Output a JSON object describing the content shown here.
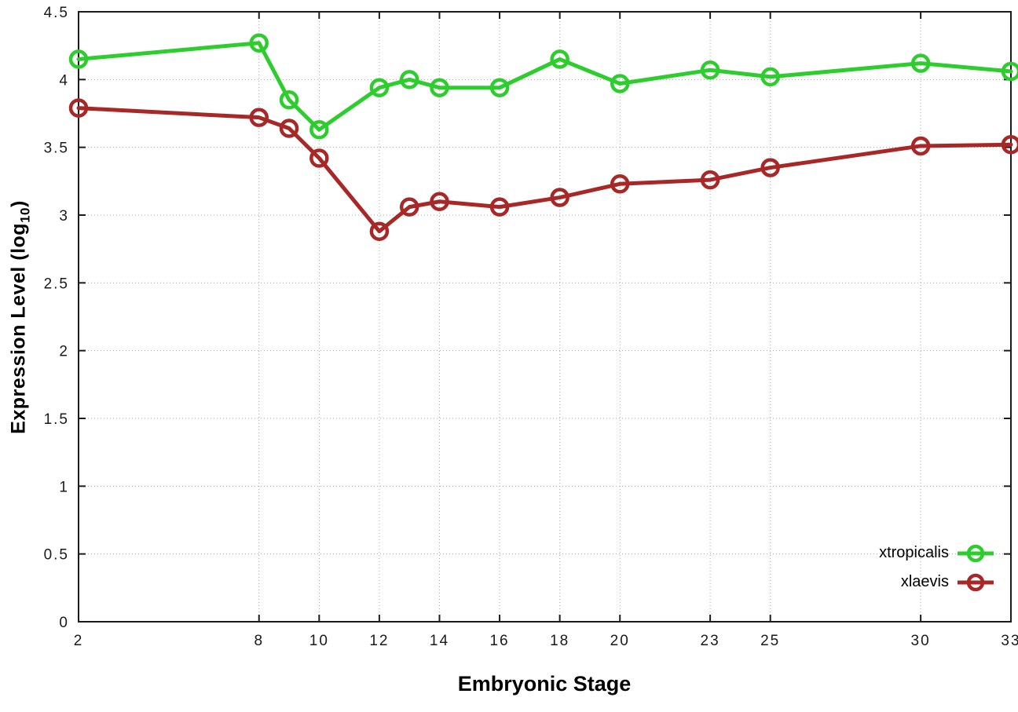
{
  "axis": {
    "y_label_prefix": "Expression Level (log",
    "y_label_sub": "10",
    "y_label_suffix": ")",
    "x_label": "Embryonic Stage"
  },
  "colors": {
    "background": "#ffffff",
    "border": "#1c1c1c",
    "grid": "#a8a8a8",
    "tick_text": "#1a1a1a"
  },
  "chart_data": {
    "type": "line",
    "title": "",
    "xlabel": "Embryonic Stage",
    "ylabel": "Expression Level (log10)",
    "xlim": [
      2,
      33
    ],
    "ylim": [
      0,
      4.5
    ],
    "grid": true,
    "legend_position": "bottom-right",
    "x": [
      2,
      8,
      9,
      10,
      12,
      13,
      14,
      16,
      18,
      20,
      23,
      25,
      30,
      33
    ],
    "x_ticks": [
      2,
      8,
      10,
      12,
      14,
      16,
      18,
      20,
      23,
      25,
      30,
      33
    ],
    "x_tick_labels": [
      "2",
      "8",
      "10",
      "12",
      "14",
      "16",
      "18",
      "20",
      "23",
      "25",
      "30",
      "33"
    ],
    "y_ticks": [
      0,
      0.5,
      1,
      1.5,
      2,
      2.5,
      3,
      3.5,
      4,
      4.5
    ],
    "y_tick_labels": [
      "0",
      "0.5",
      "1",
      "1.5",
      "2",
      "2.5",
      "3",
      "3.5",
      "4",
      "4.5"
    ],
    "series": [
      {
        "name": "xtropicalis",
        "color": "#2dcd2d",
        "values": [
          4.15,
          4.27,
          3.85,
          3.63,
          3.94,
          4.0,
          3.94,
          3.94,
          4.15,
          3.97,
          4.07,
          4.02,
          4.12,
          4.06
        ]
      },
      {
        "name": "xlaevis",
        "color": "#a82828",
        "values": [
          3.79,
          3.72,
          3.64,
          3.42,
          2.88,
          3.06,
          3.1,
          3.06,
          3.13,
          3.23,
          3.26,
          3.35,
          3.51,
          3.52
        ]
      }
    ]
  }
}
